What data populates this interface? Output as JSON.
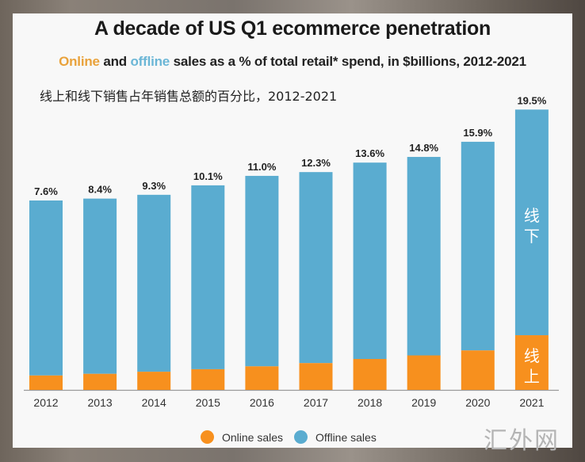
{
  "chart_data": {
    "type": "bar",
    "stacked": true,
    "title": "A decade of US Q1 ecommerce penetration",
    "subtitle": {
      "online_word": "Online",
      "and_word": " and ",
      "offline_word": "offline",
      "rest": " sales as a % of total retail* spend, in $billions, 2012-2021"
    },
    "subtitle_cn": "线上和线下销售占年销售总额的百分比，2012-2021",
    "categories": [
      "2012",
      "2013",
      "2014",
      "2015",
      "2016",
      "2017",
      "2018",
      "2019",
      "2020",
      "2021"
    ],
    "online_share_pct": [
      7.6,
      8.4,
      9.3,
      10.1,
      11.0,
      12.3,
      13.6,
      14.8,
      15.9,
      19.5
    ],
    "data_labels": [
      "7.6%",
      "8.4%",
      "9.3%",
      "10.1%",
      "11.0%",
      "12.3%",
      "13.6%",
      "14.8%",
      "15.9%",
      "19.5%"
    ],
    "total_retail_index": [
      100,
      101,
      103,
      108,
      113,
      115,
      120,
      123,
      131,
      148
    ],
    "series": [
      {
        "name": "Online sales",
        "color": "#f7901e"
      },
      {
        "name": "Offline sales",
        "color": "#5aacd0"
      }
    ],
    "bar_annotations": {
      "offline": "线\n下",
      "online": "线\n上",
      "category": "2021"
    },
    "xlabel": "",
    "ylabel": "",
    "grid": false,
    "legend_position": "bottom-center"
  },
  "watermark": "汇外网"
}
